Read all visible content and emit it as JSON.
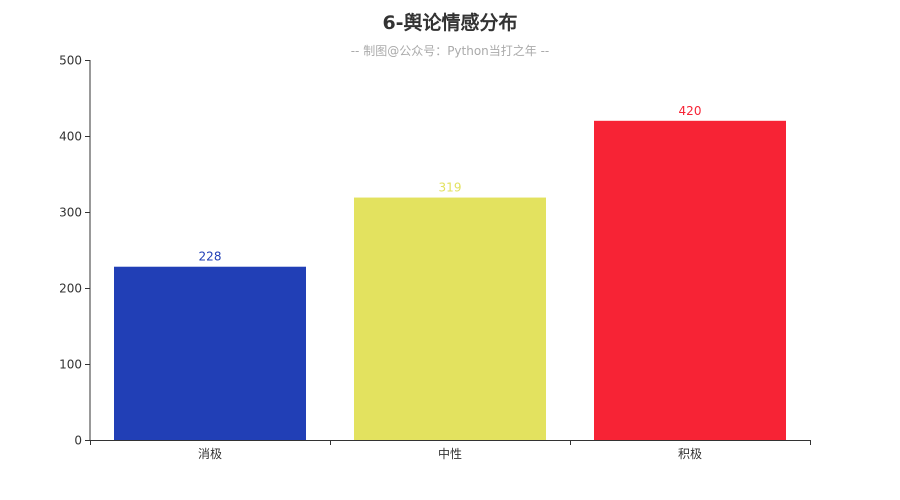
{
  "chart_data": {
    "type": "bar",
    "title": "6-舆论情感分布",
    "subtitle": "-- 制图@公众号：Python当打之年 --",
    "categories": [
      "消极",
      "中性",
      "积极"
    ],
    "values": [
      228,
      319,
      420
    ],
    "colors": [
      "#213fb6",
      "#e3e25f",
      "#f72335"
    ],
    "ylim": [
      0,
      500
    ],
    "yticks": [
      0,
      100,
      200,
      300,
      400,
      500
    ],
    "grid": false,
    "data_labels": true
  }
}
